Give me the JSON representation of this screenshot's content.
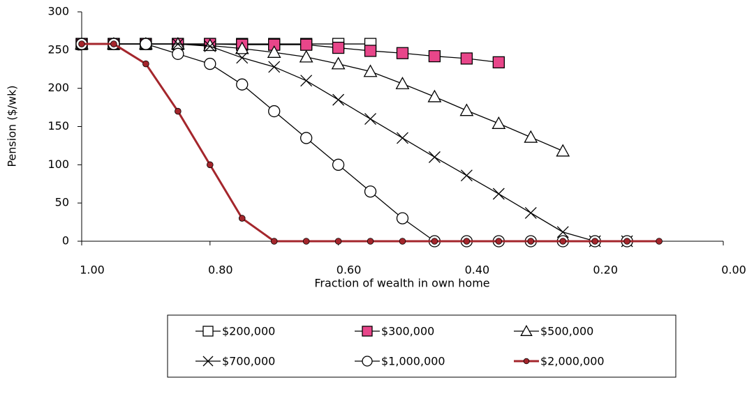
{
  "chart_data": {
    "type": "line",
    "xlabel": "Fraction of wealth in own home",
    "ylabel": "Pension ($/wk)",
    "xlim": [
      1,
      0
    ],
    "ylim": [
      0,
      300
    ],
    "xticks": [
      {
        "value": 1,
        "label": "1.00"
      },
      {
        "value": 0.8,
        "label": "0.80"
      },
      {
        "value": 0.6,
        "label": "0.60"
      },
      {
        "value": 0.4,
        "label": "0.40"
      },
      {
        "value": 0.2,
        "label": "0.20"
      },
      {
        "value": 0,
        "label": "0.00"
      }
    ],
    "yticks": [
      0,
      50,
      100,
      150,
      200,
      250,
      300
    ],
    "grid": false,
    "legend": "bottom",
    "series": [
      {
        "name": "$200,000",
        "color": "#000000",
        "marker": "square",
        "marker_fill": "#ffffff",
        "x": [
          1,
          0.95,
          0.9,
          0.85,
          0.8,
          0.75,
          0.7,
          0.65,
          0.6,
          0.55
        ],
        "values": [
          258,
          258,
          258,
          258,
          258,
          258,
          258,
          258,
          258,
          258
        ]
      },
      {
        "name": "$300,000",
        "color": "#000000",
        "marker": "square",
        "marker_fill": "#e8468a",
        "x": [
          1,
          0.95,
          0.9,
          0.85,
          0.8,
          0.75,
          0.7,
          0.65,
          0.6,
          0.55,
          0.5,
          0.45,
          0.4,
          0.35
        ],
        "values": [
          258,
          258,
          258,
          258,
          258,
          257,
          257,
          257,
          253,
          249,
          246,
          242,
          239,
          234
        ]
      },
      {
        "name": "$500,000",
        "color": "#000000",
        "marker": "triangle",
        "marker_fill": "#ffffff",
        "x": [
          1,
          0.95,
          0.9,
          0.85,
          0.8,
          0.75,
          0.7,
          0.65,
          0.6,
          0.55,
          0.5,
          0.45,
          0.4,
          0.35,
          0.3,
          0.25
        ],
        "values": [
          258,
          258,
          258,
          258,
          256,
          252,
          247,
          241,
          232,
          222,
          206,
          189,
          171,
          154,
          136,
          118
        ]
      },
      {
        "name": "$700,000",
        "color": "#000000",
        "marker": "cross",
        "marker_fill": "none",
        "x": [
          1,
          0.95,
          0.9,
          0.85,
          0.8,
          0.75,
          0.7,
          0.65,
          0.6,
          0.55,
          0.5,
          0.45,
          0.4,
          0.35,
          0.3,
          0.25,
          0.2,
          0.15
        ],
        "values": [
          258,
          258,
          258,
          258,
          255,
          240,
          228,
          210,
          185,
          160,
          135,
          110,
          86,
          62,
          37,
          12,
          0,
          0
        ]
      },
      {
        "name": "$1,000,000",
        "color": "#000000",
        "marker": "circle",
        "marker_fill": "#ffffff",
        "x": [
          1,
          0.95,
          0.9,
          0.85,
          0.8,
          0.75,
          0.7,
          0.65,
          0.6,
          0.55,
          0.5,
          0.45,
          0.4,
          0.35,
          0.3,
          0.25,
          0.2,
          0.15
        ],
        "values": [
          258,
          258,
          258,
          245,
          232,
          205,
          170,
          135,
          100,
          65,
          30,
          0,
          0,
          0,
          0,
          0,
          0,
          0
        ]
      },
      {
        "name": "$2,000,000",
        "color": "#a4262c",
        "marker": "dot",
        "marker_fill": "#a4262c",
        "x": [
          1,
          0.95,
          0.9,
          0.85,
          0.8,
          0.75,
          0.7,
          0.65,
          0.6,
          0.55,
          0.5,
          0.45,
          0.4,
          0.35,
          0.3,
          0.25,
          0.2,
          0.15,
          0.1
        ],
        "values": [
          258,
          258,
          232,
          170,
          100,
          30,
          0,
          0,
          0,
          0,
          0,
          0,
          0,
          0,
          0,
          0,
          0,
          0,
          0
        ]
      }
    ]
  }
}
